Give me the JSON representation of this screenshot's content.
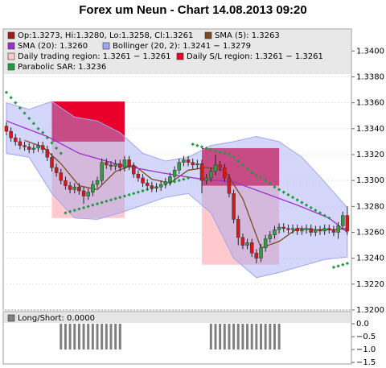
{
  "chart_data": [
    {
      "type": "candlestick",
      "title": "Forex um Neun - Chart 14.08.2013 09:20",
      "name": "Op:1.3273, Hi:1.3280, Lo:1.3258, Cl:1.3261",
      "color": "#9b1c1c",
      "up_color": "#2e9e3e",
      "down_color": "#d81818",
      "open": [
        1.3342,
        1.3338,
        1.3333,
        1.333,
        1.3327,
        1.3326,
        1.3324,
        1.3325,
        1.3327,
        1.3324,
        1.3318,
        1.331,
        1.3306,
        1.33,
        1.3296,
        1.3293,
        1.3295,
        1.3292,
        1.3288,
        1.3291,
        1.3297,
        1.33,
        1.3314,
        1.3312,
        1.3311,
        1.3313,
        1.331,
        1.3316,
        1.3311,
        1.3305,
        1.3302,
        1.3298,
        1.3296,
        1.3294,
        1.3295,
        1.3297,
        1.3299,
        1.3303,
        1.3308,
        1.3314,
        1.3316,
        1.3314,
        1.3312,
        1.3313,
        1.33,
        1.3302,
        1.3307,
        1.3312,
        1.331,
        1.3302,
        1.329,
        1.327,
        1.3256,
        1.325,
        1.3252,
        1.3244,
        1.324,
        1.3248,
        1.3255,
        1.3258,
        1.3262,
        1.3264,
        1.3263,
        1.3262,
        1.3263,
        1.3261,
        1.3262,
        1.3263,
        1.326,
        1.3262,
        1.3261,
        1.3263,
        1.3262,
        1.326,
        1.3265,
        1.3273
      ],
      "high": [
        1.3345,
        1.3341,
        1.3336,
        1.3333,
        1.333,
        1.3329,
        1.3328,
        1.333,
        1.333,
        1.3327,
        1.3321,
        1.3313,
        1.3309,
        1.3303,
        1.3299,
        1.3298,
        1.3298,
        1.3295,
        1.3294,
        1.33,
        1.3303,
        1.3317,
        1.3317,
        1.3315,
        1.3316,
        1.3316,
        1.3319,
        1.3319,
        1.3314,
        1.3308,
        1.3305,
        1.3301,
        1.3299,
        1.3298,
        1.33,
        1.3302,
        1.3306,
        1.3311,
        1.3317,
        1.3319,
        1.3319,
        1.3317,
        1.3316,
        1.3316,
        1.3305,
        1.331,
        1.332,
        1.3315,
        1.3313,
        1.3305,
        1.3293,
        1.3273,
        1.3259,
        1.3255,
        1.3255,
        1.3247,
        1.3251,
        1.3258,
        1.3261,
        1.3265,
        1.3267,
        1.3267,
        1.3266,
        1.3266,
        1.3266,
        1.3265,
        1.3266,
        1.3266,
        1.3265,
        1.3265,
        1.3266,
        1.3266,
        1.3265,
        1.3268,
        1.3276,
        1.328
      ],
      "low": [
        1.3335,
        1.333,
        1.3327,
        1.3324,
        1.3323,
        1.3321,
        1.3321,
        1.3322,
        1.3321,
        1.3315,
        1.3307,
        1.3303,
        1.3297,
        1.3293,
        1.329,
        1.329,
        1.3289,
        1.3282,
        1.3285,
        1.3288,
        1.3294,
        1.3297,
        1.3309,
        1.3308,
        1.3308,
        1.3307,
        1.3307,
        1.3308,
        1.3302,
        1.3299,
        1.3295,
        1.3293,
        1.3291,
        1.3291,
        1.3292,
        1.3294,
        1.3296,
        1.33,
        1.3305,
        1.3311,
        1.3311,
        1.3309,
        1.3309,
        1.329,
        1.3297,
        1.3299,
        1.3304,
        1.3307,
        1.3299,
        1.3287,
        1.3267,
        1.325,
        1.3247,
        1.3247,
        1.3241,
        1.3236,
        1.3237,
        1.3245,
        1.3252,
        1.3255,
        1.3259,
        1.326,
        1.3259,
        1.3259,
        1.3258,
        1.3258,
        1.3259,
        1.3257,
        1.3257,
        1.3258,
        1.3258,
        1.3259,
        1.3257,
        1.3255,
        1.3262,
        1.3258
      ],
      "close": [
        1.3338,
        1.3333,
        1.333,
        1.3327,
        1.3326,
        1.3324,
        1.3325,
        1.3327,
        1.3324,
        1.3318,
        1.331,
        1.3306,
        1.33,
        1.3296,
        1.3293,
        1.3295,
        1.3292,
        1.3288,
        1.3291,
        1.3297,
        1.33,
        1.3314,
        1.3312,
        1.3311,
        1.3313,
        1.331,
        1.3316,
        1.3311,
        1.3305,
        1.3302,
        1.3298,
        1.3296,
        1.3294,
        1.3295,
        1.3297,
        1.3299,
        1.3303,
        1.3308,
        1.3314,
        1.3316,
        1.3314,
        1.3312,
        1.3313,
        1.33,
        1.3302,
        1.3307,
        1.3312,
        1.331,
        1.3302,
        1.329,
        1.327,
        1.3256,
        1.325,
        1.3252,
        1.3244,
        1.324,
        1.3248,
        1.3255,
        1.3258,
        1.3262,
        1.3264,
        1.3263,
        1.3262,
        1.3263,
        1.3261,
        1.3262,
        1.3263,
        1.326,
        1.3262,
        1.3261,
        1.3263,
        1.3262,
        1.326,
        1.3265,
        1.3273,
        1.3261
      ],
      "overlays": [
        {
          "type": "line",
          "name": "SMA (5): 1.3263",
          "color": "#7b4a22",
          "x": [
            4,
            8,
            12,
            16,
            20,
            24,
            28,
            32,
            36,
            40,
            44,
            48,
            52,
            56,
            60,
            64,
            68,
            72,
            75
          ],
          "values": [
            1.3331,
            1.3326,
            1.3313,
            1.3296,
            1.3293,
            1.3307,
            1.3312,
            1.3301,
            1.3298,
            1.3308,
            1.331,
            1.3308,
            1.3286,
            1.3248,
            1.3253,
            1.3263,
            1.3262,
            1.3262,
            1.3263
          ]
        },
        {
          "type": "line",
          "name": "SMA (20): 1.3260",
          "color": "#9b30d0",
          "x": [
            0,
            9,
            16,
            25,
            34,
            43,
            50,
            57,
            64,
            71,
            75
          ],
          "values": [
            1.3346,
            1.3334,
            1.3321,
            1.3312,
            1.3306,
            1.3301,
            1.3299,
            1.329,
            1.3281,
            1.3271,
            1.326
          ]
        },
        {
          "type": "band",
          "name": "Bollinger (20, 2): 1.3241 − 1.3279",
          "color": "#9fa6f2",
          "x": [
            0,
            5,
            10,
            15,
            20,
            25,
            30,
            35,
            40,
            45,
            50,
            55,
            60,
            65,
            70,
            75
          ],
          "upper": [
            1.336,
            1.3355,
            1.3361,
            1.3349,
            1.3346,
            1.3337,
            1.3321,
            1.3315,
            1.3318,
            1.3327,
            1.333,
            1.3334,
            1.333,
            1.3318,
            1.3299,
            1.3279
          ],
          "lower": [
            1.3321,
            1.3318,
            1.329,
            1.3271,
            1.327,
            1.3275,
            1.3281,
            1.3287,
            1.329,
            1.3275,
            1.324,
            1.3225,
            1.3229,
            1.3234,
            1.3239,
            1.3241
          ]
        },
        {
          "type": "region",
          "name": "Daily trading region: 1.3261 − 1.3261",
          "color": "#ffc9cd",
          "regions": [
            {
              "start": 10,
              "end": 26,
              "low": 1.3271,
              "high": 1.333
            },
            {
              "start": 43,
              "end": 60,
              "low": 1.3235,
              "high": 1.3315
            }
          ]
        },
        {
          "type": "region",
          "name": "Daily S/L region: 1.3261 − 1.3261",
          "color": "#e8002a",
          "regions": [
            {
              "start": 10,
              "end": 26,
              "low": 1.333,
              "high": 1.3361
            },
            {
              "start": 43,
              "end": 60,
              "low": 1.3296,
              "high": 1.3325
            }
          ]
        },
        {
          "type": "dots",
          "name": "Parabolic SAR: 1.3236",
          "color": "#229944",
          "values": [
            1.3368,
            1.3364,
            1.336,
            1.3356,
            1.3352,
            1.3348,
            1.3344,
            1.334,
            1.3337,
            1.3333,
            1.3329,
            1.3325,
            1.3321,
            1.3275,
            1.3276,
            1.3277,
            1.3278,
            1.3279,
            1.328,
            1.3281,
            1.3282,
            1.3283,
            1.3284,
            1.3285,
            1.3286,
            1.3287,
            1.3288,
            1.3289,
            1.329,
            1.3291,
            1.3292,
            1.3293,
            1.3294,
            1.3295,
            1.3296,
            1.3297,
            1.3298,
            1.3299,
            1.33,
            1.3301,
            1.3302,
            1.3328,
            1.3327,
            1.3326,
            1.3325,
            1.3324,
            1.3323,
            1.3322,
            1.3321,
            1.332,
            1.3318,
            1.3315,
            1.3312,
            1.3309,
            1.3306,
            1.3304,
            1.3302,
            1.33,
            1.3298,
            1.3295,
            1.3293,
            1.3291,
            1.3289,
            1.3287,
            1.3285,
            1.3283,
            1.3281,
            1.3279,
            1.3277,
            1.3275,
            1.3273,
            1.3271,
            1.3233,
            1.3234,
            1.3235,
            1.3236
          ]
        }
      ],
      "ylim": [
        1.32,
        1.3417
      ],
      "yticks": [
        {
          "value": 1.32,
          "label": "1.3200"
        },
        {
          "value": 1.322,
          "label": "1.3220"
        },
        {
          "value": 1.324,
          "label": "1.3240"
        },
        {
          "value": 1.326,
          "label": "1.3260"
        },
        {
          "value": 1.328,
          "label": "1.3280"
        },
        {
          "value": 1.33,
          "label": "1.3300"
        },
        {
          "value": 1.332,
          "label": "1.3320"
        },
        {
          "value": 1.334,
          "label": "1.3340"
        },
        {
          "value": 1.336,
          "label": "1.3360"
        },
        {
          "value": 1.338,
          "label": "1.3380"
        },
        {
          "value": 1.34,
          "label": "1.3400"
        }
      ],
      "grid": true
    },
    {
      "type": "bar",
      "name": "Long/Short: 0.0000",
      "color": "#808080",
      "values": [
        0,
        0,
        0,
        0,
        0,
        0,
        0,
        0,
        0,
        0,
        0,
        0,
        -1,
        -1,
        -1,
        -1,
        -1,
        -1,
        -1,
        -1,
        -1,
        -1,
        -1,
        -1,
        -1,
        -1,
        0,
        0,
        0,
        0,
        0,
        0,
        0,
        0,
        0,
        0,
        0,
        0,
        0,
        0,
        0,
        0,
        0,
        0,
        0,
        -1,
        -1,
        -1,
        -1,
        -1,
        -1,
        -1,
        -1,
        -1,
        -1,
        -1,
        -1,
        -1,
        -1,
        -1,
        -1,
        0,
        0,
        0,
        0,
        0,
        0,
        0,
        0,
        0,
        0,
        0,
        0,
        0,
        0,
        0
      ],
      "ylim": [
        -1.56,
        0.47
      ],
      "yticks": [
        {
          "value": 0,
          "label": "0.0"
        },
        {
          "value": -0.5,
          "label": "−0.5"
        },
        {
          "value": -1,
          "label": "−1.0"
        },
        {
          "value": -1.5,
          "label": "−1.5"
        }
      ]
    }
  ]
}
